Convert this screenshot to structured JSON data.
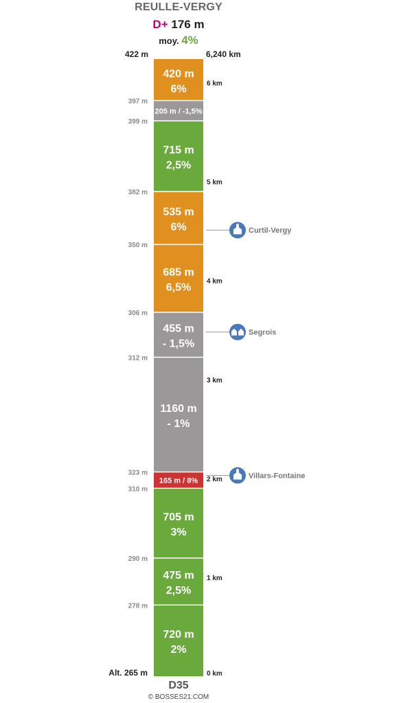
{
  "header": {
    "title": "REULLE-VERGY",
    "dplus_label": "D+",
    "dplus_value": "176 m",
    "avg_label": "moy.",
    "avg_value": "4%"
  },
  "top_labels": {
    "altitude": "422 m",
    "distance": "6,240 km"
  },
  "footer": {
    "road": "D35",
    "copyright": "© BOSSES21.COM"
  },
  "colors": {
    "orange": "#e0901e",
    "grey": "#9a9899",
    "green": "#6aaa3c",
    "red": "#cc3333",
    "marker_blue": "#4a78b8"
  },
  "chart_data": {
    "type": "bar",
    "orientation": "vertical-stacked-profile",
    "total_km": 6.24,
    "start_altitude_label": "Alt. 265 m",
    "segments": [
      {
        "length_m": 720,
        "grade": "2%",
        "label": "720 m\n2%",
        "color": "green",
        "end_altitude": "278 m"
      },
      {
        "length_m": 475,
        "grade": "2,5%",
        "label": "475 m\n2,5%",
        "color": "green",
        "end_altitude": "290 m"
      },
      {
        "length_m": 705,
        "grade": "3%",
        "label": "705 m\n3%",
        "color": "green",
        "end_altitude": "310 m"
      },
      {
        "length_m": 165,
        "grade": "8%",
        "label": "165 m / 8%",
        "color": "red",
        "end_altitude": "323 m"
      },
      {
        "length_m": 1160,
        "grade": "- 1%",
        "label": "1160 m\n- 1%",
        "color": "grey",
        "end_altitude": "312 m"
      },
      {
        "length_m": 455,
        "grade": "- 1,5%",
        "label": "455 m\n- 1,5%",
        "color": "grey",
        "end_altitude": "306 m"
      },
      {
        "length_m": 685,
        "grade": "6,5%",
        "label": "685 m\n6,5%",
        "color": "orange",
        "end_altitude": "350 m"
      },
      {
        "length_m": 535,
        "grade": "6%",
        "label": "535 m\n6%",
        "color": "orange",
        "end_altitude": "382 m"
      },
      {
        "length_m": 715,
        "grade": "2,5%",
        "label": "715 m\n2,5%",
        "color": "green",
        "end_altitude": "399 m"
      },
      {
        "length_m": 205,
        "grade": "-1,5%",
        "label": "205 m / -1,5%",
        "color": "grey",
        "end_altitude": "397 m"
      },
      {
        "length_m": 420,
        "grade": "6%",
        "label": "420 m\n6%",
        "color": "orange",
        "end_altitude": "422 m"
      }
    ],
    "km_markers": [
      {
        "km": 0,
        "label": "0 km"
      },
      {
        "km": 1,
        "label": "1 km"
      },
      {
        "km": 2,
        "label": "2 km"
      },
      {
        "km": 3,
        "label": "3 km"
      },
      {
        "km": 4,
        "label": "4 km"
      },
      {
        "km": 5,
        "label": "5 km"
      },
      {
        "km": 6,
        "label": "6 km"
      }
    ],
    "places": [
      {
        "km": 2.03,
        "name": "Villars-Fontaine",
        "icon": "church-icon"
      },
      {
        "km": 3.48,
        "name": "Segrois",
        "icon": "houses-icon"
      },
      {
        "km": 4.51,
        "name": "Curtil-Vergy",
        "icon": "church-icon"
      }
    ]
  }
}
